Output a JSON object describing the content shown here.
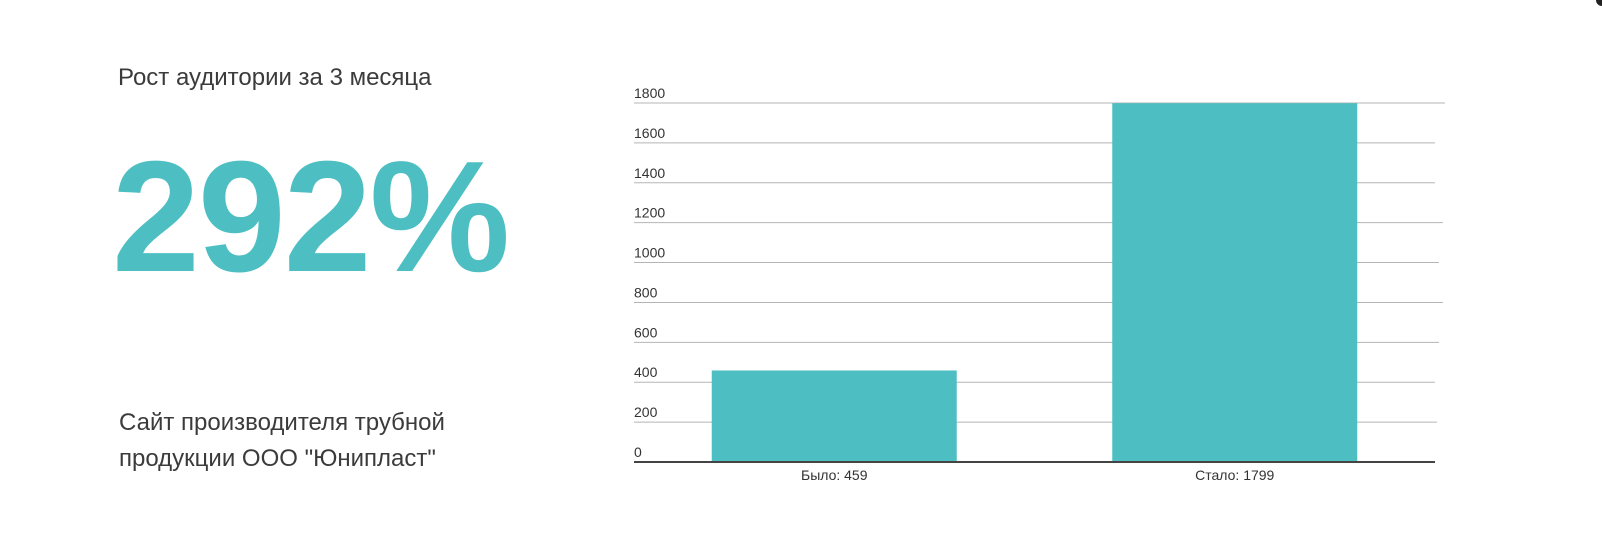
{
  "stat": {
    "heading": "Рост аудитории за 3 месяца",
    "value": "292%",
    "caption": "Сайт производителя трубной продукции ООО \"Юнипласт\""
  },
  "chart_data": {
    "type": "bar",
    "categories": [
      "Было: 459",
      "Стало: 1799"
    ],
    "values": [
      459,
      1799
    ],
    "ylim": [
      0,
      1800
    ],
    "yticks": [
      0,
      200,
      400,
      600,
      800,
      1000,
      1200,
      1400,
      1600,
      1800
    ],
    "grid": true,
    "bar_color": "#4dbfc2"
  }
}
